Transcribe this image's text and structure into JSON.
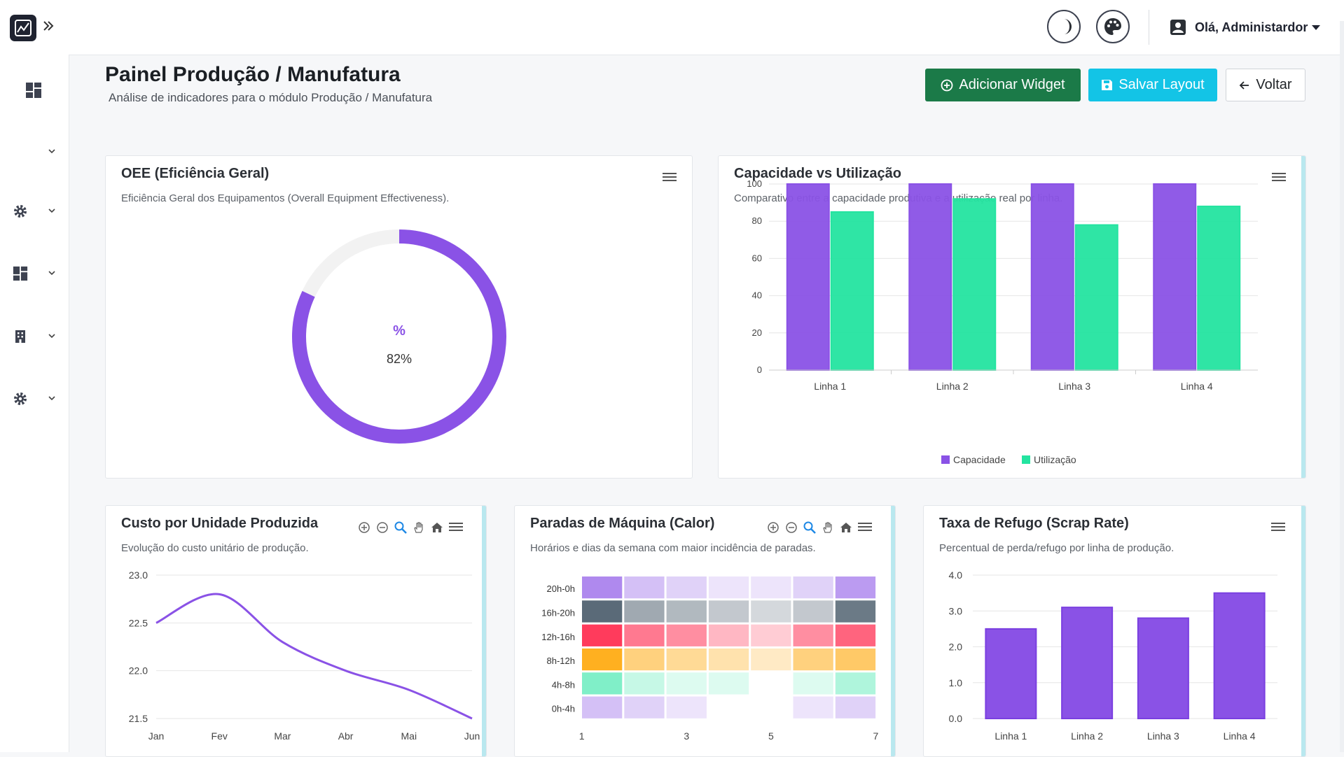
{
  "header": {
    "user_greeting": "Olá, Administardor",
    "icons": [
      "moon-icon",
      "palette-icon",
      "user-icon"
    ]
  },
  "sidebar": {
    "items": [
      {
        "icon": "dashboard-icon",
        "has_chevron": false
      },
      {
        "icon": "",
        "has_chevron": true
      },
      {
        "icon": "gear-icon",
        "has_chevron": true
      },
      {
        "icon": "dashboard-icon",
        "has_chevron": true
      },
      {
        "icon": "building-icon",
        "has_chevron": true
      },
      {
        "icon": "gear-icon",
        "has_chevron": true
      }
    ]
  },
  "page": {
    "title": "Painel Produção / Manufatura",
    "subtitle": "Análise de indicadores para o módulo Produção / Manufatura",
    "buttons": {
      "add_widget": "Adicionar Widget",
      "save_layout": "Salvar Layout",
      "back": "Voltar"
    }
  },
  "colors": {
    "purple": "#8a52e6",
    "green": "#24e4a0",
    "add_button": "#1b7a48",
    "save_button": "#13c4e6"
  },
  "widgets": {
    "oee": {
      "title": "OEE (Eficiência Geral)",
      "description": "Eficiência Geral dos Equipamentos (Overall Equipment Effectiveness).",
      "unit_label": "%",
      "value_label": "82%"
    },
    "capacity": {
      "title": "Capacidade vs Utilização",
      "description": "Comparativo entre a capacidade produtiva e a utilização real por linha."
    },
    "cost": {
      "title": "Custo por Unidade Produzida",
      "description": "Evolução do custo unitário de produção."
    },
    "downtime": {
      "title": "Paradas de Máquina (Calor)",
      "description": "Horários e dias da semana com maior incidência de paradas."
    },
    "scrap": {
      "title": "Taxa de Refugo (Scrap Rate)",
      "description": "Percentual de perda/refugo por linha de produção."
    }
  },
  "chart_data": [
    {
      "type": "pie",
      "values": [
        82
      ],
      "max": 100,
      "center_labels": [
        "%",
        "82%"
      ]
    },
    {
      "type": "bar",
      "categories": [
        "Linha 1",
        "Linha 2",
        "Linha 3",
        "Linha 4"
      ],
      "series": [
        {
          "name": "Capacidade",
          "values": [
            100,
            100,
            100,
            100
          ],
          "color": "#8a52e6"
        },
        {
          "name": "Utilização",
          "values": [
            85,
            92,
            78,
            88
          ],
          "color": "#24e4a0"
        }
      ],
      "ylim": [
        0,
        100
      ],
      "yticks": [
        0,
        20,
        40,
        60,
        80,
        100
      ],
      "grid": true,
      "legend": "bottom"
    },
    {
      "type": "line",
      "categories": [
        "Jan",
        "Fev",
        "Mar",
        "Abr",
        "Mai",
        "Jun"
      ],
      "series": [
        {
          "values": [
            22.5,
            22.8,
            22.3,
            22.0,
            21.8,
            21.5
          ],
          "color": "#8a52e6"
        }
      ],
      "ylim": [
        21.5,
        23.0
      ],
      "yticks": [
        "21.5",
        "22.0",
        "22.5",
        "23.0"
      ],
      "grid": true
    },
    {
      "type": "heatmap",
      "rows": [
        "20h-0h",
        "16h-20h",
        "12h-16h",
        "8h-12h",
        "4h-8h",
        "0h-4h"
      ],
      "columns": [
        1,
        2,
        3,
        4,
        5,
        6,
        7
      ],
      "xticks": [
        1,
        3,
        5,
        7
      ],
      "row_colors": [
        "#8a52e6",
        "#5a6a78",
        "#ff3b5c",
        "#ffb020",
        "#24e4a0",
        "#8a52e6"
      ],
      "values": [
        [
          6,
          3,
          2,
          1,
          1,
          2,
          5
        ],
        [
          9,
          5,
          4,
          3,
          2,
          3,
          8
        ],
        [
          9,
          6,
          5,
          3,
          2,
          5,
          7
        ],
        [
          9,
          5,
          4,
          3,
          2,
          5,
          6
        ],
        [
          5,
          2,
          1,
          1,
          0,
          1,
          3
        ],
        [
          3,
          2,
          1,
          0,
          0,
          1,
          2
        ]
      ]
    },
    {
      "type": "bar",
      "categories": [
        "Linha 1",
        "Linha 2",
        "Linha 3",
        "Linha 4"
      ],
      "values": [
        2.5,
        3.1,
        2.8,
        3.5
      ],
      "ylim": [
        0,
        4
      ],
      "yticks": [
        "0.0",
        "1.0",
        "2.0",
        "3.0",
        "4.0"
      ],
      "color": "#8a52e6",
      "grid": true
    }
  ]
}
